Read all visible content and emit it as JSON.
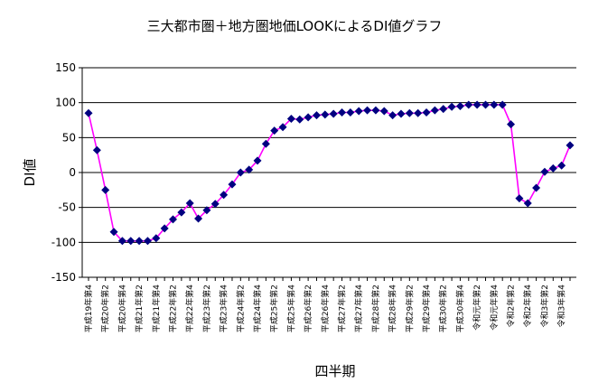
{
  "chart_data": {
    "type": "line",
    "title": "三大都市圏＋地方圏地価LOOKによるDI値グラフ",
    "xlabel": "四半期",
    "ylabel": "DI値",
    "ylim": [
      -150,
      150
    ],
    "yticks": [
      150,
      100,
      50,
      0,
      -50,
      -100,
      -150
    ],
    "grid": "horizontal",
    "legend": "none",
    "series": [
      {
        "line_color": "#FF00FF",
        "marker_color": "#000080",
        "marker": "diamond",
        "values": [
          85,
          32,
          -25,
          -85,
          -98,
          -98,
          -98,
          -98,
          -94,
          -80,
          -67,
          -57,
          -44,
          -66,
          -54,
          -45,
          -32,
          -17,
          0,
          4,
          17,
          41,
          60,
          65,
          77,
          76,
          79,
          82,
          83,
          84,
          86,
          86,
          88,
          89,
          89,
          88,
          82,
          84,
          85,
          85,
          86,
          89,
          91,
          94,
          95,
          97,
          97,
          97,
          97,
          97,
          69,
          -37,
          -44,
          -22,
          1,
          6,
          10,
          39
        ]
      }
    ],
    "x_tick_labels": [
      "平成19年第4",
      "平成20年第2",
      "平成20年第4",
      "平成21年第2",
      "平成21年第4",
      "平成22年第2",
      "平成22年第4",
      "平成23年第2",
      "平成23年第4",
      "平成24年第2",
      "平成24年第4",
      "平成25年第2",
      "平成25年第4",
      "平成26年第2",
      "平成26年第4",
      "平成27年第2",
      "平成27年第4",
      "平成28年第2",
      "平成28年第4",
      "平成29年第2",
      "平成29年第4",
      "平成30年第2",
      "平成30年第4",
      "令和元年第2",
      "令和元年第4",
      "令和2年第2",
      "令和2年第4",
      "令和3年第2",
      "令和3年第4"
    ]
  }
}
